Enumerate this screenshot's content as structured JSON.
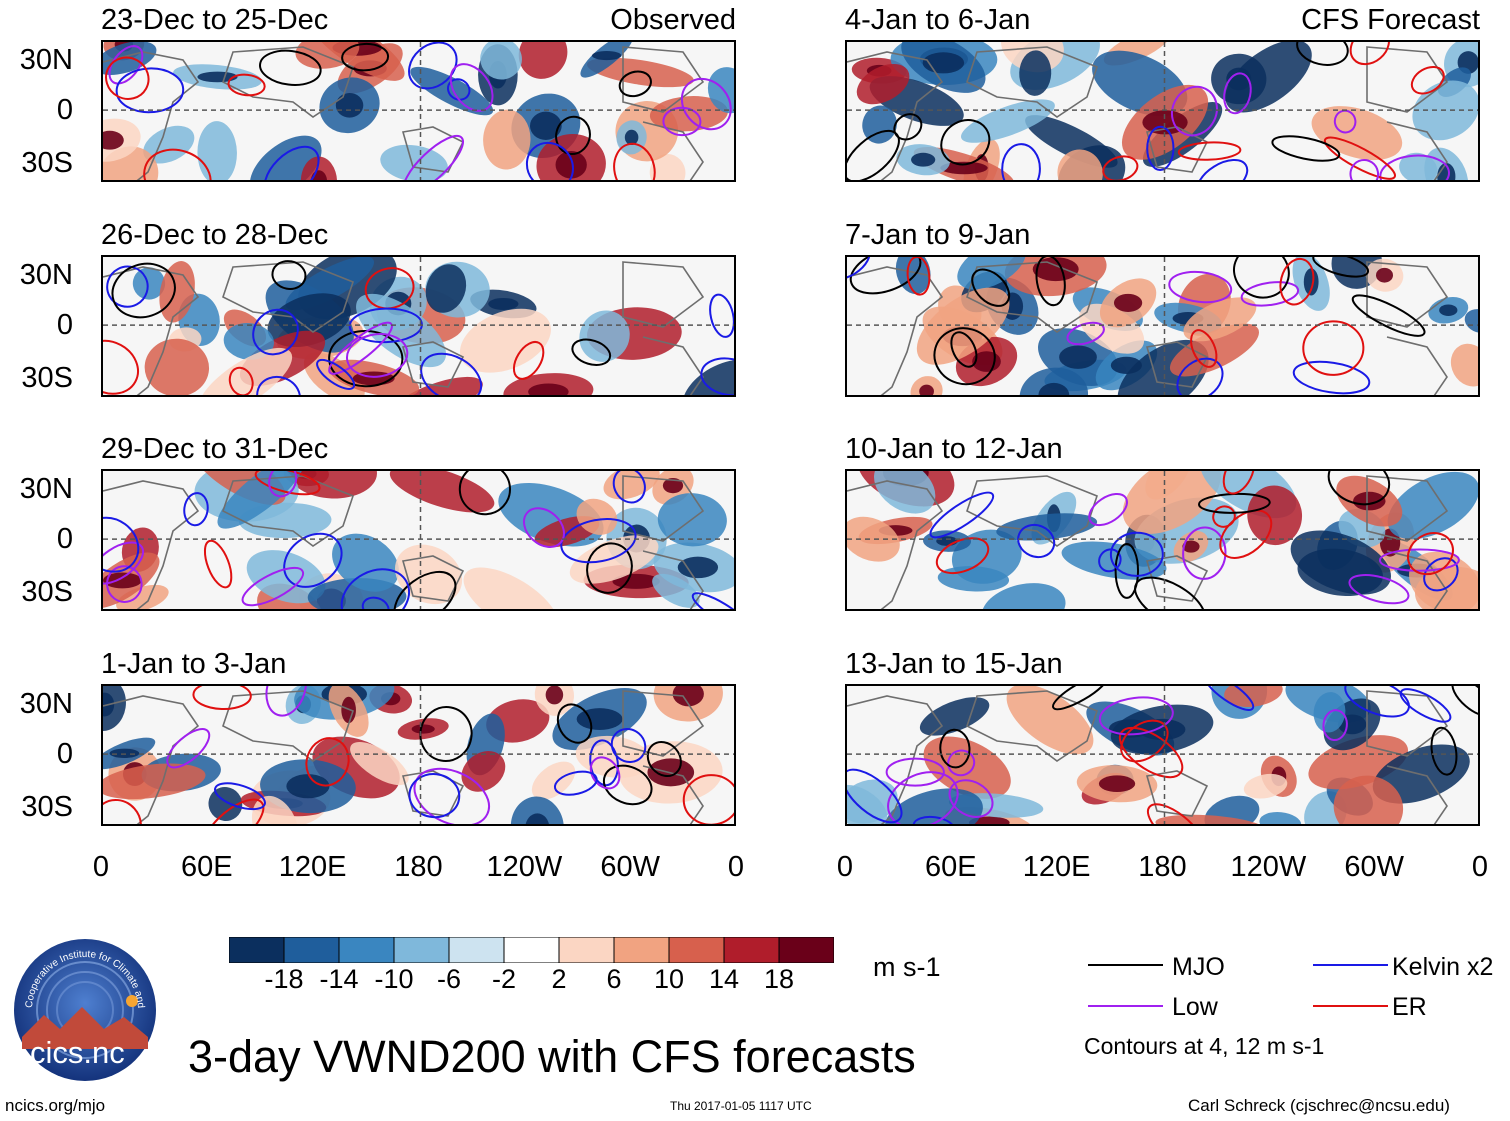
{
  "panels_left": [
    {
      "title": "23-Dec to 25-Dec",
      "tag": "Observed"
    },
    {
      "title": "26-Dec to 28-Dec",
      "tag": ""
    },
    {
      "title": "29-Dec to 31-Dec",
      "tag": ""
    },
    {
      "title": "1-Jan to 3-Jan",
      "tag": ""
    }
  ],
  "panels_right": [
    {
      "title": "4-Jan to 6-Jan",
      "tag": "CFS Forecast"
    },
    {
      "title": "7-Jan to 9-Jan",
      "tag": ""
    },
    {
      "title": "10-Jan to 12-Jan",
      "tag": ""
    },
    {
      "title": "13-Jan to 15-Jan",
      "tag": ""
    }
  ],
  "lat_labels": [
    "30N",
    "0",
    "30S"
  ],
  "lon_labels": [
    "0",
    "60E",
    "120E",
    "180",
    "120W",
    "60W",
    "0"
  ],
  "colorbar": {
    "colors": [
      "#0b2f5e",
      "#1f5e9c",
      "#3a86c0",
      "#7fb8db",
      "#cde3f0",
      "#ffffff",
      "#fbd6c3",
      "#f1a381",
      "#d7604d",
      "#b01d2b",
      "#6a0019"
    ],
    "labels": [
      "-18",
      "-14",
      "-10",
      "-6",
      "-2",
      "2",
      "6",
      "10",
      "14",
      "18"
    ],
    "units": "m s-1"
  },
  "legend": {
    "items": [
      {
        "label": "MJO",
        "color": "#000000"
      },
      {
        "label": "Kelvin x2",
        "color": "#1a1ae6"
      },
      {
        "label": "Low",
        "color": "#a020f0"
      },
      {
        "label": "ER",
        "color": "#e01010"
      }
    ],
    "note": "Contours at 4, 12 m s-1"
  },
  "logo_text": "cics.nc",
  "logo_ring_text": "Cooperative Institute for Climate and Satellites",
  "main_title": "3-day VWND200 with CFS forecasts",
  "footer": {
    "left": "ncics.org/mjo",
    "center": "Thu 2017-01-05 1117 UTC",
    "right": "Carl Schreck (cjschrec@ncsu.edu)"
  }
}
